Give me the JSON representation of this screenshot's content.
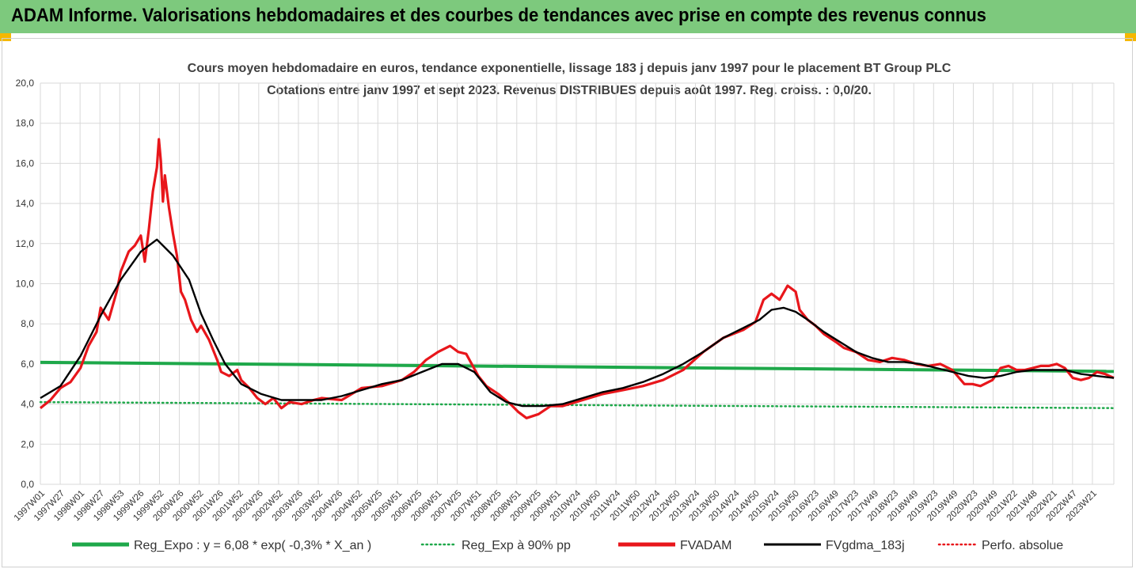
{
  "banner": {
    "title": "ADAM Informe. Valorisations hebdomadaires et des courbes de tendances avec prise en compte des revenus connus"
  },
  "colors": {
    "banner_bg": "#7dc97d",
    "corner": "#f5b800",
    "reg_expo": "#1ea84a",
    "reg_exp_90": "#1ea84a",
    "fvadam": "#e8161b",
    "fvgdma": "#000000",
    "perfo": "#e8161b"
  },
  "chart_data": {
    "type": "line",
    "title": "Cours moyen hebdomadaire en euros, tendance exponentielle, lissage 183 j depuis janv 1997 pour le placement BT Group PLC",
    "subtitle": "Cotations entre janv 1997 et sept 2023. Revenus DISTRIBUES depuis août 1997. Reg. croiss. : 0,0/20.",
    "ylim": [
      0,
      20
    ],
    "xlim": [
      1997.0,
      2023.72
    ],
    "y_ticks": [
      "0,0",
      "2,0",
      "4,0",
      "6,0",
      "8,0",
      "10,0",
      "12,0",
      "14,0",
      "16,0",
      "18,0",
      "20,0"
    ],
    "x_ticks": [
      "1997W01",
      "1997W27",
      "1998W01",
      "1998W27",
      "1998W53",
      "1999W26",
      "1999W52",
      "2000W26",
      "2000W52",
      "2001W26",
      "2001W52",
      "2002W26",
      "2002W52",
      "2003W26",
      "2003W52",
      "2004W26",
      "2004W52",
      "2005W25",
      "2005W51",
      "2006W25",
      "2006W51",
      "2007W25",
      "2007W51",
      "2008W25",
      "2008W51",
      "2009W25",
      "2009W51",
      "2010W24",
      "2010W50",
      "2011W24",
      "2011W50",
      "2012W24",
      "2012W50",
      "2013W24",
      "2013W50",
      "2014W24",
      "2014W50",
      "2015W24",
      "2015W50",
      "2016W23",
      "2016W49",
      "2017W23",
      "2017W49",
      "2018W23",
      "2018W49",
      "2019W23",
      "2019W49",
      "2020W23",
      "2020W49",
      "2021W22",
      "2021W48",
      "2022W21",
      "2022W47",
      "2023W21"
    ],
    "grid": true,
    "legend_position": "bottom",
    "legend": [
      {
        "label": "Reg_Expo : y = 6,08 * exp( -0,3% * X_an )",
        "style": "solid-thick",
        "color": "#1ea84a"
      },
      {
        "label": "Reg_Exp à 90% pp",
        "style": "dotted",
        "color": "#1ea84a"
      },
      {
        "label": "FVADAM",
        "style": "solid-thick",
        "color": "#e8161b"
      },
      {
        "label": "FVgdma_183j",
        "style": "solid",
        "color": "#000000"
      },
      {
        "label": "Perfo. absolue",
        "style": "dotted",
        "color": "#e8161b"
      }
    ],
    "series": [
      {
        "name": "FVADAM",
        "x": [
          1997.0,
          1997.25,
          1997.5,
          1997.75,
          1998.0,
          1998.2,
          1998.4,
          1998.5,
          1998.7,
          1998.9,
          1999.0,
          1999.2,
          1999.35,
          1999.5,
          1999.6,
          1999.7,
          1999.8,
          1999.9,
          1999.95,
          2000.0,
          2000.05,
          2000.1,
          2000.2,
          2000.3,
          2000.4,
          2000.5,
          2000.6,
          2000.75,
          2000.9,
          2001.0,
          2001.2,
          2001.4,
          2001.5,
          2001.7,
          2001.9,
          2002.0,
          2002.2,
          2002.4,
          2002.6,
          2002.8,
          2003.0,
          2003.2,
          2003.5,
          2003.8,
          2004.0,
          2004.5,
          2005.0,
          2005.5,
          2006.0,
          2006.3,
          2006.6,
          2006.9,
          2007.2,
          2007.4,
          2007.6,
          2007.9,
          2008.1,
          2008.4,
          2008.7,
          2008.9,
          2009.1,
          2009.4,
          2009.7,
          2010.0,
          2010.5,
          2011.0,
          2011.5,
          2012.0,
          2012.5,
          2013.0,
          2013.5,
          2014.0,
          2014.5,
          2014.8,
          2015.0,
          2015.2,
          2015.4,
          2015.6,
          2015.8,
          2015.9,
          2016.1,
          2016.3,
          2016.5,
          2016.8,
          2017.0,
          2017.3,
          2017.6,
          2017.9,
          2018.2,
          2018.5,
          2018.8,
          2019.1,
          2019.4,
          2019.7,
          2020.0,
          2020.2,
          2020.4,
          2020.7,
          2020.9,
          2021.1,
          2021.3,
          2021.5,
          2021.7,
          2021.9,
          2022.1,
          2022.3,
          2022.5,
          2022.7,
          2022.9,
          2023.1,
          2023.3,
          2023.5,
          2023.72
        ],
        "y": [
          3.8,
          4.2,
          4.8,
          5.1,
          5.8,
          6.9,
          7.6,
          8.8,
          8.2,
          9.6,
          10.6,
          11.6,
          11.9,
          12.4,
          11.1,
          12.7,
          14.6,
          15.8,
          17.2,
          16.1,
          14.1,
          15.4,
          13.8,
          12.5,
          11.4,
          9.6,
          9.2,
          8.2,
          7.6,
          7.9,
          7.2,
          6.2,
          5.6,
          5.4,
          5.7,
          5.2,
          4.8,
          4.3,
          4.0,
          4.3,
          3.8,
          4.1,
          4.0,
          4.2,
          4.3,
          4.2,
          4.8,
          4.9,
          5.2,
          5.6,
          6.2,
          6.6,
          6.9,
          6.6,
          6.5,
          5.4,
          4.9,
          4.5,
          4.0,
          3.6,
          3.3,
          3.5,
          3.9,
          3.9,
          4.2,
          4.5,
          4.7,
          4.9,
          5.2,
          5.7,
          6.6,
          7.3,
          7.7,
          8.1,
          9.2,
          9.5,
          9.2,
          9.9,
          9.6,
          8.7,
          8.2,
          7.9,
          7.5,
          7.1,
          6.8,
          6.6,
          6.2,
          6.1,
          6.3,
          6.2,
          6.0,
          5.9,
          6.0,
          5.7,
          5.0,
          5.0,
          4.9,
          5.2,
          5.8,
          5.9,
          5.7,
          5.7,
          5.8,
          5.9,
          5.9,
          6.0,
          5.8,
          5.3,
          5.2,
          5.3,
          5.6,
          5.5,
          5.3
        ]
      },
      {
        "name": "FVgdma_183j",
        "x": [
          1997.0,
          1997.5,
          1998.0,
          1998.5,
          1999.0,
          1999.5,
          1999.9,
          2000.3,
          2000.7,
          2001.0,
          2001.3,
          2001.6,
          2002.0,
          2002.5,
          2003.0,
          2003.5,
          2004.0,
          2004.5,
          2005.0,
          2005.5,
          2006.0,
          2006.5,
          2007.0,
          2007.4,
          2007.8,
          2008.2,
          2008.6,
          2009.0,
          2009.5,
          2010.0,
          2010.5,
          2011.0,
          2011.5,
          2012.0,
          2012.5,
          2013.0,
          2013.5,
          2014.0,
          2014.5,
          2014.9,
          2015.2,
          2015.5,
          2015.8,
          2016.1,
          2016.5,
          2016.9,
          2017.3,
          2017.7,
          2018.1,
          2018.5,
          2018.9,
          2019.3,
          2019.7,
          2020.1,
          2020.5,
          2020.9,
          2021.3,
          2021.7,
          2022.1,
          2022.5,
          2022.9,
          2023.3,
          2023.72
        ],
        "y": [
          4.3,
          4.9,
          6.4,
          8.4,
          10.2,
          11.6,
          12.2,
          11.4,
          10.2,
          8.5,
          7.2,
          6.0,
          5.0,
          4.5,
          4.2,
          4.2,
          4.2,
          4.4,
          4.7,
          5.0,
          5.2,
          5.6,
          6.0,
          6.0,
          5.6,
          4.6,
          4.1,
          3.9,
          3.9,
          4.0,
          4.3,
          4.6,
          4.8,
          5.1,
          5.5,
          6.0,
          6.6,
          7.3,
          7.8,
          8.2,
          8.7,
          8.8,
          8.6,
          8.2,
          7.6,
          7.1,
          6.6,
          6.3,
          6.1,
          6.1,
          6.0,
          5.8,
          5.6,
          5.4,
          5.3,
          5.4,
          5.6,
          5.7,
          5.7,
          5.7,
          5.5,
          5.4,
          5.3
        ]
      },
      {
        "name": "Reg_Expo",
        "x": [
          1997.0,
          2023.72
        ],
        "y": [
          6.08,
          5.63
        ]
      },
      {
        "name": "Reg_Exp à 90% pp",
        "x": [
          1997.0,
          2023.72
        ],
        "y": [
          4.1,
          3.8
        ]
      }
    ]
  }
}
